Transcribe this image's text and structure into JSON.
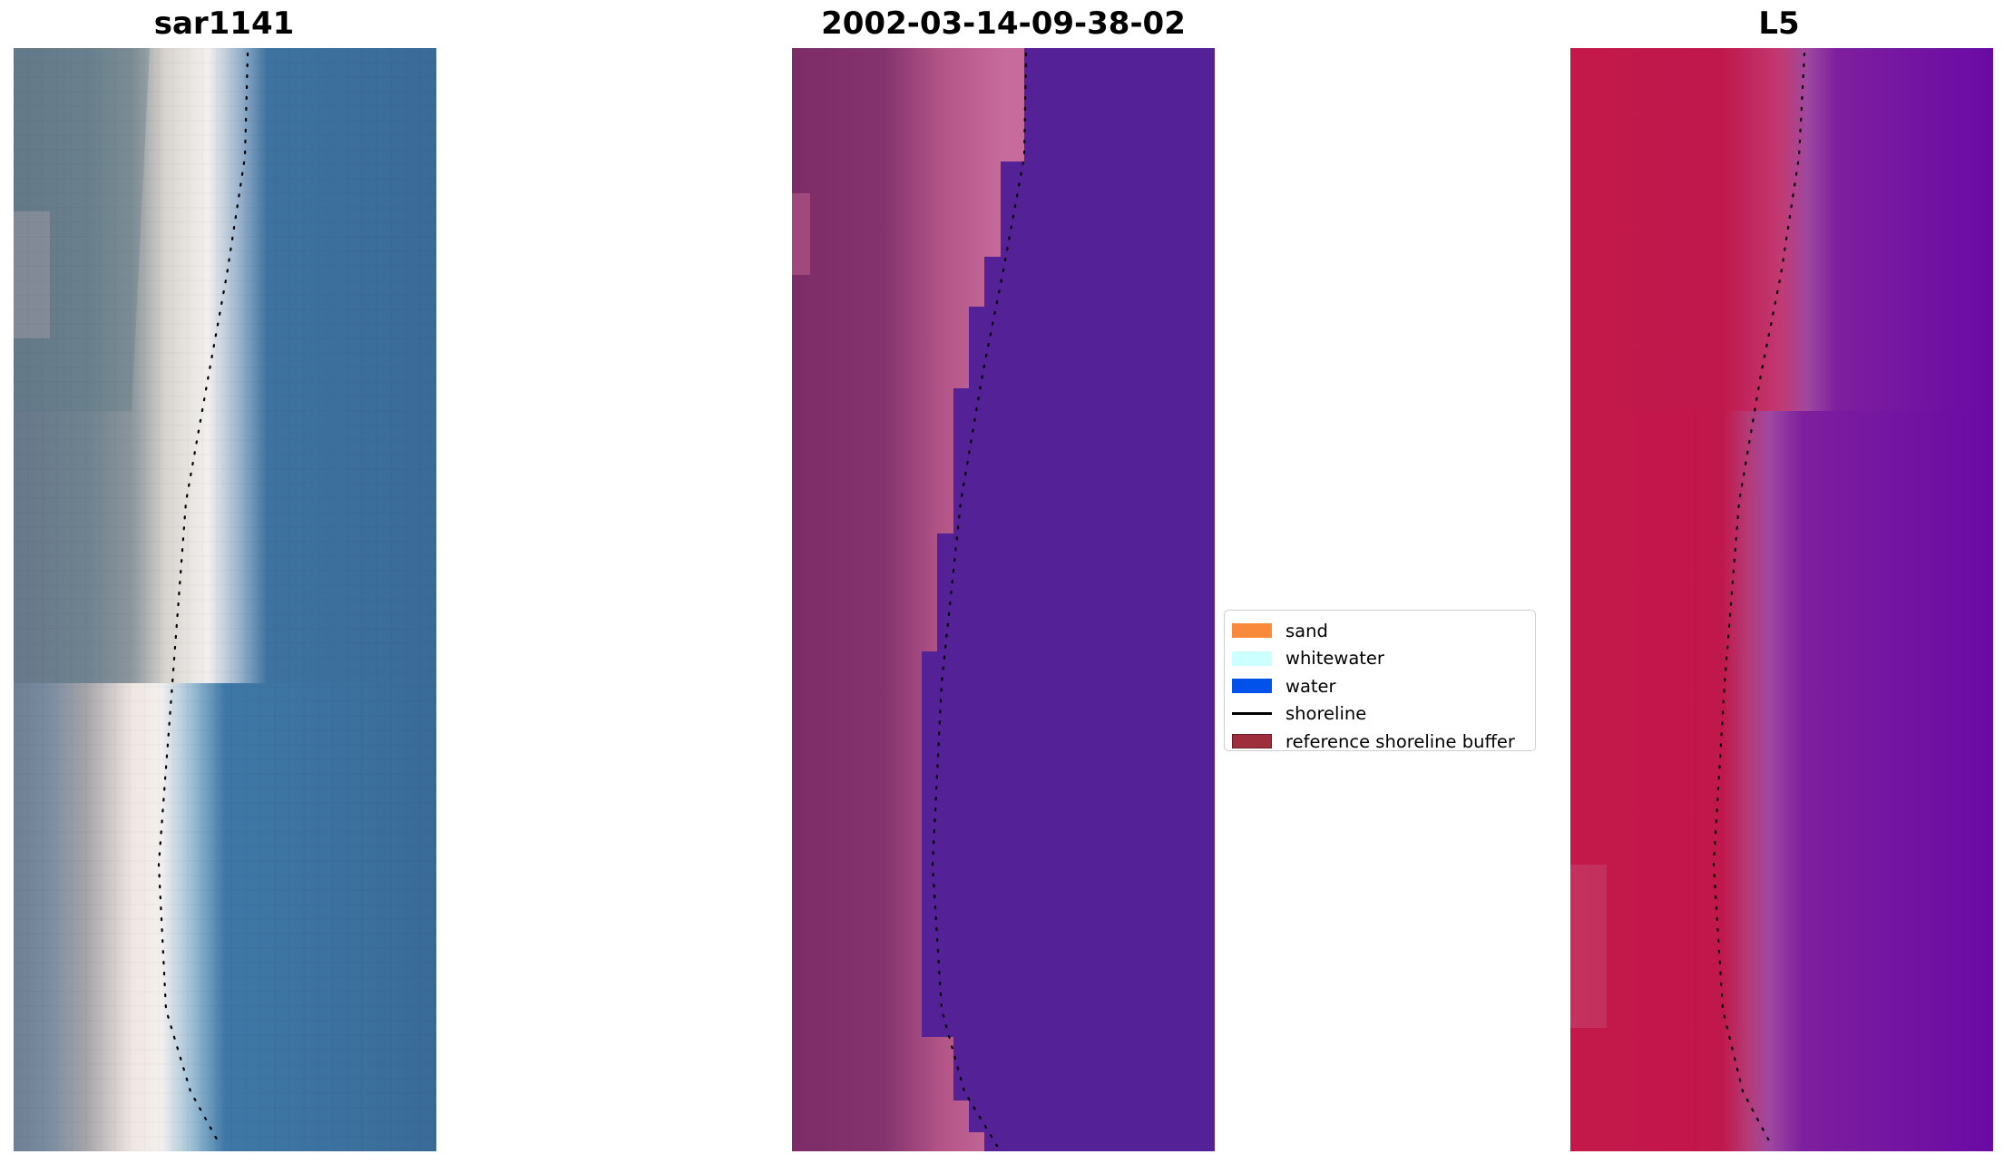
{
  "panels": [
    {
      "title": "sar1141",
      "image": "rgb-satellite-beach"
    },
    {
      "title": "2002-03-14-09-38-02",
      "image": "classified-beach"
    },
    {
      "title": "L5",
      "image": "mndwi-beach"
    }
  ],
  "legend": {
    "items": [
      {
        "label": "sand",
        "color": "#f98a3c",
        "type": "patch"
      },
      {
        "label": "whitewater",
        "color": "#ccffff",
        "type": "patch"
      },
      {
        "label": "water",
        "color": "#0052ea",
        "type": "patch"
      },
      {
        "label": "shoreline",
        "color": "#000000",
        "type": "line"
      },
      {
        "label": "reference shoreline buffer",
        "color": "#9e2e3c",
        "type": "patch"
      }
    ]
  }
}
